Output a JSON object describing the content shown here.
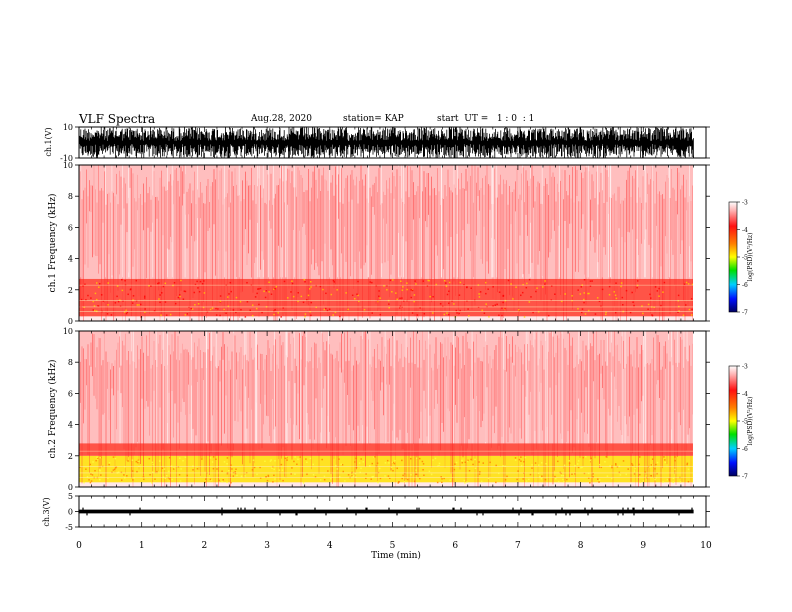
{
  "header": {
    "title": "VLF Spectra",
    "date": "Aug.28, 2020",
    "station": "station= KAP",
    "start": "start  UT =   1 : 0  : 1"
  },
  "chart_data": [
    {
      "type": "line",
      "panel": "ch1-waveform",
      "ylabel": "ch.1(V)",
      "ylim": [
        -10,
        10
      ],
      "yticks": [
        "10",
        "-10"
      ],
      "description_values": {
        "typical_min": -10,
        "typical_max": 10
      },
      "xlim": [
        0,
        10
      ],
      "trace_color": "#000000"
    },
    {
      "type": "heatmap",
      "panel": "ch1-spectrogram",
      "ylabel": "ch.1 Frequency  (kHz)",
      "ylim": [
        0,
        10
      ],
      "yticks": [
        "0",
        "2",
        "4",
        "6",
        "8",
        "10"
      ],
      "xlim": [
        0,
        9.8
      ],
      "bands": [
        {
          "from": 0.3,
          "to": 2.7,
          "level": "high"
        },
        {
          "from": 2.7,
          "to": 10,
          "level": "moderate"
        }
      ],
      "colorbar": {
        "label": "log(PSD)(V²/Hz)",
        "ticks": [
          "-3",
          "-4",
          "-5",
          "-6",
          "-7"
        ],
        "range": [
          -7,
          -3
        ]
      }
    },
    {
      "type": "heatmap",
      "panel": "ch2-spectrogram",
      "ylabel": "ch.2 Frequency  (kHz)",
      "ylim": [
        0,
        10
      ],
      "yticks": [
        "0",
        "2",
        "4",
        "6",
        "8",
        "10"
      ],
      "xlim": [
        0,
        9.8
      ],
      "bands": [
        {
          "from": 0.3,
          "to": 2.0,
          "level": "very-high"
        },
        {
          "from": 2.0,
          "to": 2.8,
          "level": "high"
        },
        {
          "from": 2.8,
          "to": 10,
          "level": "moderate"
        }
      ],
      "colorbar": {
        "label": "log(PSD)(V²/Hz)",
        "ticks": [
          "-3",
          "-4",
          "-5",
          "-6",
          "-7"
        ],
        "range": [
          -7,
          -3
        ]
      }
    },
    {
      "type": "line",
      "panel": "ch3-waveform",
      "ylabel": "ch.3(V)",
      "ylim": [
        -5,
        5
      ],
      "yticks": [
        "5",
        "0",
        "-5"
      ],
      "description_values": {
        "typical_min": -0.6,
        "typical_max": 0.6
      },
      "xlim": [
        0,
        10
      ],
      "xlabel": "Time  (min)",
      "xticks": [
        "0",
        "1",
        "2",
        "3",
        "4",
        "5",
        "6",
        "7",
        "8",
        "9",
        "10"
      ],
      "trace_color": "#000000"
    }
  ]
}
